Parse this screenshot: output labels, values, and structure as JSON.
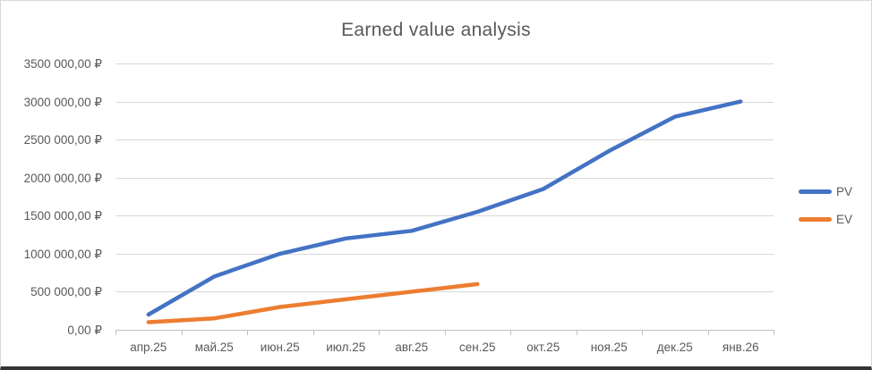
{
  "chart_data": {
    "type": "line",
    "title": "Earned value analysis",
    "categories": [
      "апр.25",
      "май.25",
      "июн.25",
      "июл.25",
      "авг.25",
      "сен.25",
      "окт.25",
      "ноя.25",
      "дек.25",
      "янв.26"
    ],
    "series": [
      {
        "name": "PV",
        "color": "#4472C4",
        "values": [
          200000,
          700000,
          1000000,
          1200000,
          1300000,
          1550000,
          1850000,
          2350000,
          2800000,
          3000000
        ]
      },
      {
        "name": "EV",
        "color": "#ED7D31",
        "values": [
          100000,
          150000,
          300000,
          400000,
          500000,
          600000
        ]
      }
    ],
    "y_axis": {
      "min": 0,
      "max": 3500000,
      "step": 500000,
      "tick_labels_top_down": [
        "3500 000,00 ₽",
        "3000 000,00 ₽",
        "2500 000,00 ₽",
        "2000 000,00 ₽",
        "1500 000,00 ₽",
        "1000 000,00 ₽",
        "500 000,00 ₽",
        "0,00 ₽"
      ]
    },
    "xlabel": "",
    "ylabel": "",
    "grid": true,
    "legend_position": "right",
    "colors": {
      "gridline": "#D9D9D9",
      "axis": "#BFBFBF",
      "text": "#595959",
      "title": "#595959"
    }
  }
}
